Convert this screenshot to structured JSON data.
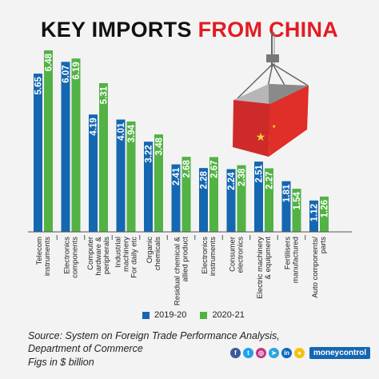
{
  "title": {
    "part1": "KEY IMPORTS ",
    "part2": "FROM CHINA"
  },
  "colors": {
    "series1": "#1467b1",
    "series2": "#52b244",
    "accent": "#e31b23"
  },
  "chart_data": {
    "type": "bar",
    "orientation": "vertical",
    "title": "KEY IMPORTS FROM CHINA",
    "unit": "$ billion",
    "categories": [
      "Telecom instruments",
      "Electronics components",
      "Computer hardware & peripherals",
      "Industrial machinery For daily etc",
      "Organic chemicals",
      "Residual chemical & allied product",
      "Electronics instruments",
      "Consumer electronics",
      "Electric machinery & equipment",
      "Fertilisers manufactured",
      "Auto components/ parts"
    ],
    "category_lines": [
      [
        "Telecom",
        "instruments"
      ],
      [
        "Electronics",
        "components"
      ],
      [
        "Computer",
        "hardware &",
        "peripherals"
      ],
      [
        "Industrial",
        "machinery",
        "For daily etc"
      ],
      [
        "Organic",
        "chemicals"
      ],
      [
        "Residual chemical &",
        "allied product"
      ],
      [
        "Electronics",
        "instruments"
      ],
      [
        "Consumer",
        "electronics"
      ],
      [
        "Electric machinery",
        "& equipment"
      ],
      [
        "Fertilisers",
        "manufactured"
      ],
      [
        "Auto components/",
        "parts"
      ]
    ],
    "series": [
      {
        "name": "2019-20",
        "values": [
          5.65,
          6.07,
          4.19,
          4.01,
          3.22,
          2.41,
          2.28,
          2.24,
          2.51,
          1.81,
          1.12
        ]
      },
      {
        "name": "2020-21",
        "values": [
          6.48,
          6.19,
          5.31,
          3.94,
          3.48,
          2.68,
          2.67,
          2.38,
          2.27,
          1.54,
          1.26
        ]
      }
    ],
    "ylim": [
      0,
      6.48
    ],
    "legend_position": "bottom",
    "grid": false
  },
  "legend": [
    {
      "label": "2019-20"
    },
    {
      "label": "2020-21"
    }
  ],
  "source": "Source: System on Foreign Trade Performance Analysis, Department of Commerce",
  "figs": "Figs in $ billion",
  "social_icons": [
    "facebook-icon",
    "twitter-icon",
    "instagram-icon",
    "telegram-icon",
    "linkedin-icon",
    "koo-icon"
  ],
  "brand": "moneycontrol"
}
